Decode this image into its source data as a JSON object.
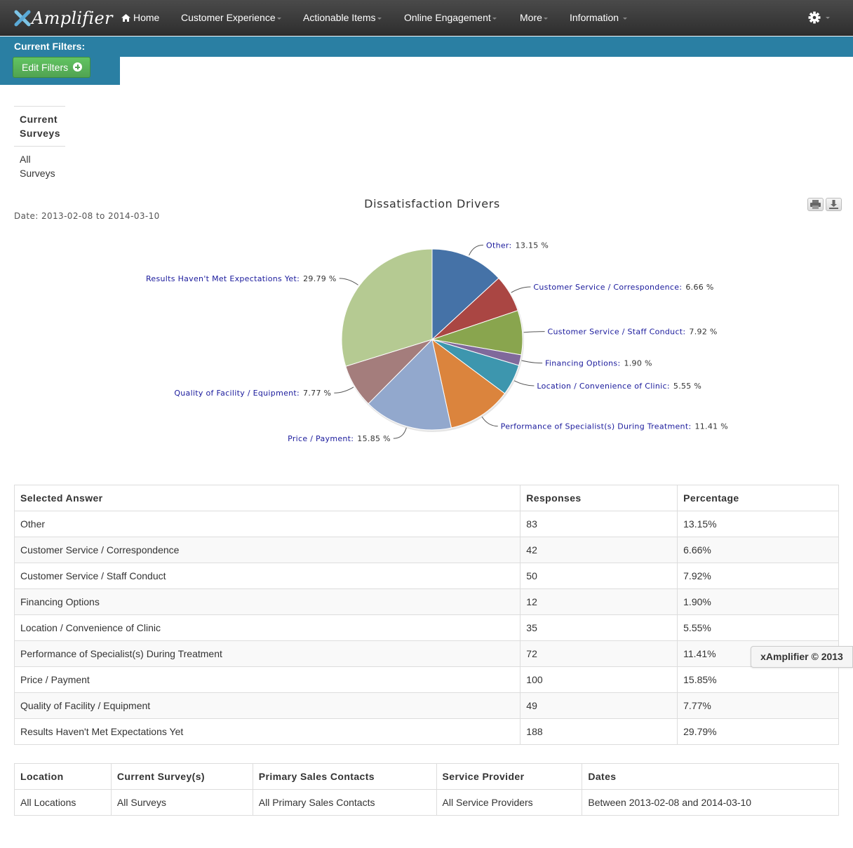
{
  "brand": {
    "name": "Amplifier"
  },
  "nav": {
    "home": "Home",
    "items": [
      "Customer Experience",
      "Actionable Items",
      "Online Engagement",
      "More",
      "Information"
    ]
  },
  "filters": {
    "title": "Current Filters:",
    "edit_label": "Edit Filters"
  },
  "surveys": {
    "header": "Current Surveys",
    "value": "All Surveys"
  },
  "chart_data": {
    "type": "pie",
    "title": "Dissatisfaction Drivers",
    "subtitle": "Date: 2013-02-08 to 2014-03-10",
    "slices": [
      {
        "label": "Other",
        "value": 13.15,
        "color": "#4572a7"
      },
      {
        "label": "Customer Service / Correspondence",
        "value": 6.66,
        "color": "#aa4643"
      },
      {
        "label": "Customer Service / Staff Conduct",
        "value": 7.92,
        "color": "#89a54e"
      },
      {
        "label": "Financing Options",
        "value": 1.9,
        "color": "#80699b"
      },
      {
        "label": "Location / Convenience of Clinic",
        "value": 5.55,
        "color": "#3d96ae"
      },
      {
        "label": "Performance of Specialist(s) During Treatment",
        "value": 11.41,
        "color": "#db843d"
      },
      {
        "label": "Price / Payment",
        "value": 15.85,
        "color": "#92a8cd"
      },
      {
        "label": "Quality of Facility / Equipment",
        "value": 7.77,
        "color": "#a47d7c"
      },
      {
        "label": "Results Haven't Met Expectations Yet",
        "value": 29.79,
        "color": "#b5ca92"
      }
    ]
  },
  "answers_table": {
    "headers": [
      "Selected Answer",
      "Responses",
      "Percentage"
    ],
    "rows": [
      [
        "Other",
        "83",
        "13.15%"
      ],
      [
        "Customer Service / Correspondence",
        "42",
        "6.66%"
      ],
      [
        "Customer Service / Staff Conduct",
        "50",
        "7.92%"
      ],
      [
        "Financing Options",
        "12",
        "1.90%"
      ],
      [
        "Location / Convenience of Clinic",
        "35",
        "5.55%"
      ],
      [
        "Performance of Specialist(s) During Treatment",
        "72",
        "11.41%"
      ],
      [
        "Price / Payment",
        "100",
        "15.85%"
      ],
      [
        "Quality of Facility / Equipment",
        "49",
        "7.77%"
      ],
      [
        "Results Haven't Met Expectations Yet",
        "188",
        "29.79%"
      ]
    ]
  },
  "filters_table": {
    "headers": [
      "Location",
      "Current Survey(s)",
      "Primary Sales Contacts",
      "Service Provider",
      "Dates"
    ],
    "row": [
      "All Locations",
      "All Surveys",
      "All Primary Sales Contacts",
      "All Service Providers",
      "Between 2013-02-08 and 2014-03-10"
    ]
  },
  "footer": {
    "badge": "xAmplifier © 2013"
  }
}
